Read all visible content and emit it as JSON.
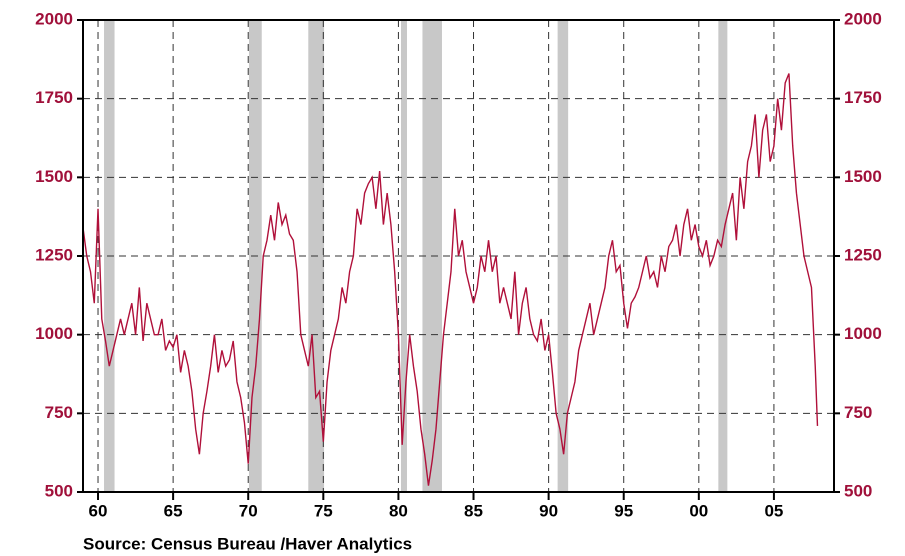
{
  "chart_data": {
    "type": "line",
    "source": "Source:  Census Bureau /Haver Analytics",
    "xlim": [
      1959,
      2009
    ],
    "ylim": [
      500,
      2000
    ],
    "yticks": [
      500,
      750,
      1000,
      1250,
      1500,
      1750,
      2000
    ],
    "xticks": [
      {
        "value": 1960,
        "label": "60"
      },
      {
        "value": 1965,
        "label": "65"
      },
      {
        "value": 1970,
        "label": "70"
      },
      {
        "value": 1975,
        "label": "75"
      },
      {
        "value": 1980,
        "label": "80"
      },
      {
        "value": 1985,
        "label": "85"
      },
      {
        "value": 1990,
        "label": "90"
      },
      {
        "value": 1995,
        "label": "95"
      },
      {
        "value": 2000,
        "label": "00"
      },
      {
        "value": 2005,
        "label": "05"
      }
    ],
    "grid": true,
    "recessions": [
      [
        1960.4,
        1961.1
      ],
      [
        1970.05,
        1970.9
      ],
      [
        1974.0,
        1975.05
      ],
      [
        1980.17,
        1980.57
      ],
      [
        1981.6,
        1982.9
      ],
      [
        1990.6,
        1991.3
      ],
      [
        2001.3,
        2001.9
      ]
    ],
    "recession_color": "#c8c8c8",
    "x": [
      1959,
      1959.25,
      1959.5,
      1959.75,
      1960,
      1960.25,
      1960.5,
      1960.75,
      1961,
      1961.25,
      1961.5,
      1961.75,
      1962,
      1962.25,
      1962.5,
      1962.75,
      1963,
      1963.25,
      1963.5,
      1963.75,
      1964,
      1964.25,
      1964.5,
      1964.75,
      1965,
      1965.25,
      1965.5,
      1965.75,
      1966,
      1966.25,
      1966.5,
      1966.75,
      1967,
      1967.25,
      1967.5,
      1967.75,
      1968,
      1968.25,
      1968.5,
      1968.75,
      1969,
      1969.25,
      1969.5,
      1969.75,
      1970,
      1970.25,
      1970.5,
      1970.75,
      1971,
      1971.25,
      1971.5,
      1971.75,
      1972,
      1972.25,
      1972.5,
      1972.75,
      1973,
      1973.25,
      1973.5,
      1973.75,
      1974,
      1974.25,
      1974.5,
      1974.75,
      1975,
      1975.25,
      1975.5,
      1975.75,
      1976,
      1976.25,
      1976.5,
      1976.75,
      1977,
      1977.25,
      1977.5,
      1977.75,
      1978,
      1978.25,
      1978.5,
      1978.75,
      1979,
      1979.25,
      1979.5,
      1979.75,
      1980,
      1980.25,
      1980.5,
      1980.75,
      1981,
      1981.25,
      1981.5,
      1981.75,
      1982,
      1982.25,
      1982.5,
      1982.75,
      1983,
      1983.25,
      1983.5,
      1983.75,
      1984,
      1984.25,
      1984.5,
      1984.75,
      1985,
      1985.25,
      1985.5,
      1985.75,
      1986,
      1986.25,
      1986.5,
      1986.75,
      1987,
      1987.25,
      1987.5,
      1987.75,
      1988,
      1988.25,
      1988.5,
      1988.75,
      1989,
      1989.25,
      1989.5,
      1989.75,
      1990,
      1990.25,
      1990.5,
      1990.75,
      1991,
      1991.25,
      1991.5,
      1991.75,
      1992,
      1992.25,
      1992.5,
      1992.75,
      1993,
      1993.25,
      1993.5,
      1993.75,
      1994,
      1994.25,
      1994.5,
      1994.75,
      1995,
      1995.25,
      1995.5,
      1995.75,
      1996,
      1996.25,
      1996.5,
      1996.75,
      1997,
      1997.25,
      1997.5,
      1997.75,
      1998,
      1998.25,
      1998.5,
      1998.75,
      1999,
      1999.25,
      1999.5,
      1999.75,
      2000,
      2000.25,
      2000.5,
      2000.75,
      2001,
      2001.25,
      2001.5,
      2001.75,
      2002,
      2002.25,
      2002.5,
      2002.75,
      2003,
      2003.25,
      2003.5,
      2003.75,
      2004,
      2004.25,
      2004.5,
      2004.75,
      2005,
      2005.25,
      2005.5,
      2005.75,
      2006,
      2006.25,
      2006.5,
      2006.75,
      2007,
      2007.25,
      2007.5,
      2007.75,
      2007.9
    ],
    "series": [
      {
        "color": "#b0103a",
        "values": [
          1340,
          1250,
          1200,
          1100,
          1400,
          1050,
          980,
          900,
          950,
          1000,
          1050,
          1000,
          1050,
          1100,
          1000,
          1150,
          980,
          1100,
          1050,
          1000,
          1000,
          1050,
          950,
          980,
          960,
          1000,
          880,
          950,
          900,
          820,
          700,
          620,
          750,
          820,
          900,
          1000,
          880,
          950,
          900,
          920,
          980,
          850,
          800,
          720,
          590,
          800,
          900,
          1050,
          1250,
          1300,
          1380,
          1300,
          1420,
          1350,
          1380,
          1320,
          1300,
          1200,
          1000,
          950,
          900,
          1000,
          800,
          820,
          660,
          850,
          950,
          1000,
          1050,
          1150,
          1100,
          1200,
          1250,
          1400,
          1350,
          1450,
          1480,
          1500,
          1400,
          1520,
          1350,
          1450,
          1350,
          1200,
          1000,
          650,
          850,
          1000,
          900,
          820,
          700,
          620,
          520,
          600,
          700,
          850,
          1000,
          1100,
          1200,
          1400,
          1250,
          1300,
          1200,
          1150,
          1100,
          1150,
          1250,
          1200,
          1300,
          1200,
          1250,
          1100,
          1150,
          1100,
          1050,
          1200,
          1000,
          1100,
          1150,
          1050,
          1000,
          980,
          1050,
          950,
          1000,
          880,
          750,
          700,
          620,
          750,
          800,
          850,
          950,
          1000,
          1050,
          1100,
          1000,
          1050,
          1100,
          1150,
          1250,
          1300,
          1200,
          1220,
          1100,
          1020,
          1100,
          1120,
          1150,
          1200,
          1250,
          1180,
          1200,
          1150,
          1250,
          1200,
          1280,
          1300,
          1350,
          1250,
          1350,
          1400,
          1300,
          1350,
          1280,
          1250,
          1300,
          1220,
          1250,
          1300,
          1280,
          1350,
          1400,
          1450,
          1300,
          1500,
          1400,
          1550,
          1600,
          1700,
          1500,
          1650,
          1700,
          1550,
          1600,
          1750,
          1650,
          1800,
          1830,
          1600,
          1450,
          1350,
          1250,
          1200,
          1150,
          900,
          710
        ]
      }
    ]
  }
}
